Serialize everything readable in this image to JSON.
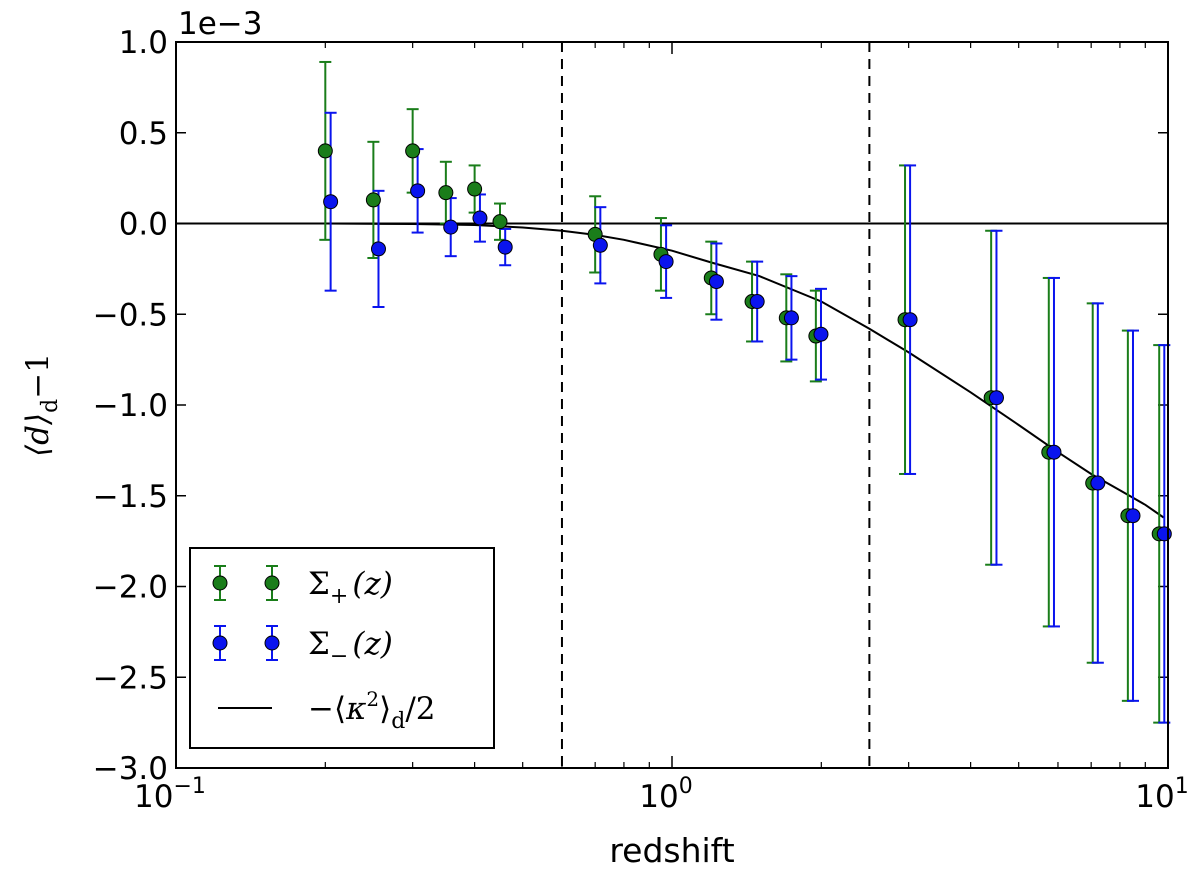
{
  "chart_data": {
    "type": "scatter",
    "xscale": "log",
    "xlim": [
      0.1,
      10
    ],
    "ylim": [
      -3.0,
      1.0
    ],
    "y_multiplier_label": "1e−3",
    "xlabel": "redshift",
    "ylabel_base": "⟨d⟩",
    "ylabel_sub": "d",
    "ylabel_tail": "−1",
    "x_ticks": [
      {
        "value": 0.1,
        "base": "10",
        "exp": "−1"
      },
      {
        "value": 1,
        "base": "10",
        "exp": "0"
      },
      {
        "value": 10,
        "base": "10",
        "exp": "1"
      }
    ],
    "y_ticks": [
      {
        "value": 1.0,
        "label": "1.0"
      },
      {
        "value": 0.5,
        "label": "0.5"
      },
      {
        "value": 0.0,
        "label": "0.0"
      },
      {
        "value": -0.5,
        "label": "−0.5"
      },
      {
        "value": -1.0,
        "label": "−1.0"
      },
      {
        "value": -1.5,
        "label": "−1.5"
      },
      {
        "value": -2.0,
        "label": "−2.0"
      },
      {
        "value": -2.5,
        "label": "−2.5"
      },
      {
        "value": -3.0,
        "label": "−3.0"
      }
    ],
    "vlines": [
      0.6,
      2.5
    ],
    "hline": 0.0,
    "legend_position": "lower-left",
    "series": [
      {
        "name": "Σ₊(z)",
        "label_main": "Σ",
        "label_sub": "+",
        "label_arg": "(z)",
        "color": "#1a7d1a",
        "points": [
          {
            "x": 0.2,
            "y": 0.4,
            "err": 0.49
          },
          {
            "x": 0.25,
            "y": 0.13,
            "err": 0.32
          },
          {
            "x": 0.3,
            "y": 0.4,
            "err": 0.23
          },
          {
            "x": 0.35,
            "y": 0.17,
            "err": 0.17
          },
          {
            "x": 0.4,
            "y": 0.19,
            "err": 0.13
          },
          {
            "x": 0.45,
            "y": 0.01,
            "err": 0.1
          },
          {
            "x": 0.7,
            "y": -0.06,
            "err": 0.21
          },
          {
            "x": 0.95,
            "y": -0.17,
            "err": 0.2
          },
          {
            "x": 1.2,
            "y": -0.3,
            "err": 0.2
          },
          {
            "x": 1.45,
            "y": -0.43,
            "err": 0.22
          },
          {
            "x": 1.7,
            "y": -0.52,
            "err": 0.24
          },
          {
            "x": 1.95,
            "y": -0.62,
            "err": 0.25
          },
          {
            "x": 2.95,
            "y": -0.53,
            "err": 0.85
          },
          {
            "x": 4.4,
            "y": -0.96,
            "err": 0.92
          },
          {
            "x": 5.75,
            "y": -1.26,
            "err": 0.96
          },
          {
            "x": 7.05,
            "y": -1.43,
            "err": 0.99
          },
          {
            "x": 8.3,
            "y": -1.61,
            "err": 1.02
          },
          {
            "x": 9.6,
            "y": -1.71,
            "err": 1.04
          }
        ]
      },
      {
        "name": "Σ₋(z)",
        "label_main": "Σ",
        "label_sub": "−",
        "label_arg": "(z)",
        "color": "#0a14ee",
        "points": [
          {
            "x": 0.205,
            "y": 0.12,
            "err": 0.49
          },
          {
            "x": 0.256,
            "y": -0.14,
            "err": 0.32
          },
          {
            "x": 0.307,
            "y": 0.18,
            "err": 0.23
          },
          {
            "x": 0.358,
            "y": -0.02,
            "err": 0.16
          },
          {
            "x": 0.41,
            "y": 0.03,
            "err": 0.13
          },
          {
            "x": 0.461,
            "y": -0.13,
            "err": 0.1
          },
          {
            "x": 0.717,
            "y": -0.12,
            "err": 0.21
          },
          {
            "x": 0.973,
            "y": -0.21,
            "err": 0.2
          },
          {
            "x": 1.229,
            "y": -0.32,
            "err": 0.21
          },
          {
            "x": 1.485,
            "y": -0.43,
            "err": 0.22
          },
          {
            "x": 1.741,
            "y": -0.52,
            "err": 0.23
          },
          {
            "x": 1.997,
            "y": -0.61,
            "err": 0.25
          },
          {
            "x": 3.02,
            "y": -0.53,
            "err": 0.85
          },
          {
            "x": 4.51,
            "y": -0.96,
            "err": 0.92
          },
          {
            "x": 5.89,
            "y": -1.26,
            "err": 0.96
          },
          {
            "x": 7.22,
            "y": -1.43,
            "err": 0.99
          },
          {
            "x": 8.5,
            "y": -1.61,
            "err": 1.02
          },
          {
            "x": 9.83,
            "y": -1.71,
            "err": 1.04
          }
        ]
      }
    ],
    "curve": {
      "name": "−⟨κ²⟩d/2",
      "label_pre": "−⟨",
      "label_kappa": "κ",
      "label_sq": "2",
      "label_close": "⟩",
      "label_sub": "d",
      "label_post": "/2",
      "color": "#000000",
      "points": [
        {
          "x": 0.2,
          "y": 0.0
        },
        {
          "x": 0.3,
          "y": -0.003
        },
        {
          "x": 0.4,
          "y": -0.008
        },
        {
          "x": 0.5,
          "y": -0.022
        },
        {
          "x": 0.6,
          "y": -0.04
        },
        {
          "x": 0.7,
          "y": -0.063
        },
        {
          "x": 0.8,
          "y": -0.09
        },
        {
          "x": 1.0,
          "y": -0.15
        },
        {
          "x": 1.2,
          "y": -0.215
        },
        {
          "x": 1.5,
          "y": -0.29
        },
        {
          "x": 2.0,
          "y": -0.43
        },
        {
          "x": 2.5,
          "y": -0.58
        },
        {
          "x": 3.0,
          "y": -0.71
        },
        {
          "x": 4.0,
          "y": -0.93
        },
        {
          "x": 5.0,
          "y": -1.11
        },
        {
          "x": 6.0,
          "y": -1.26
        },
        {
          "x": 7.0,
          "y": -1.38
        },
        {
          "x": 8.0,
          "y": -1.47
        },
        {
          "x": 9.0,
          "y": -1.55
        },
        {
          "x": 9.8,
          "y": -1.62
        }
      ]
    }
  }
}
